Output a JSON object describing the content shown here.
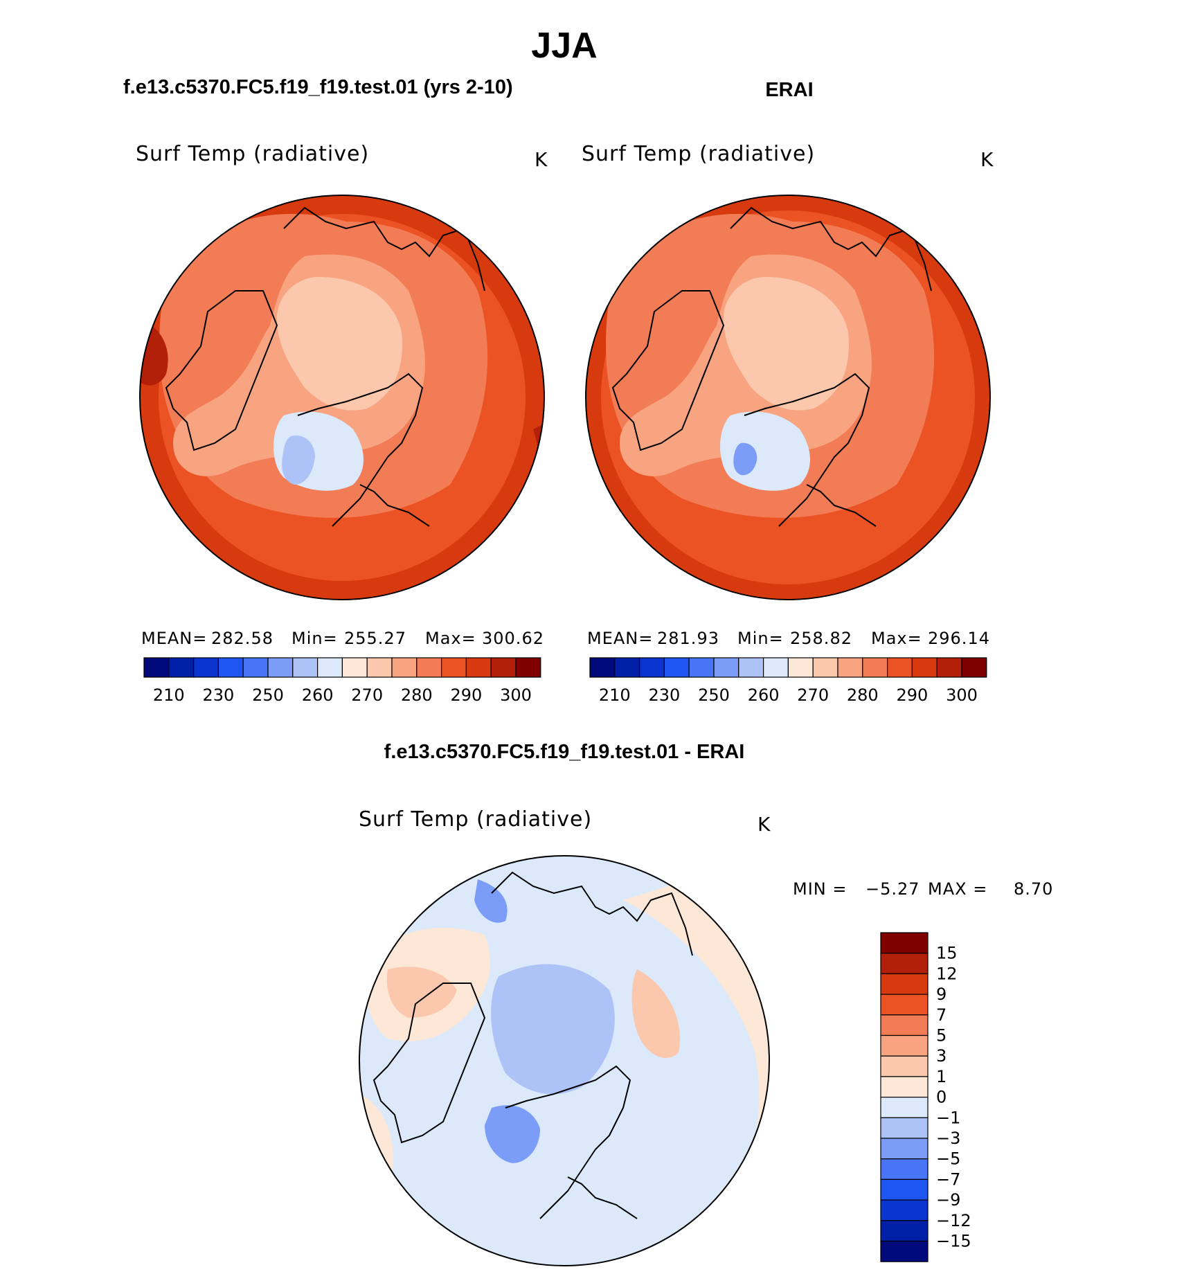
{
  "title": "JJA",
  "panels": {
    "left": {
      "title": "f.e13.c5370.FC5.f19_f19.test.01 (yrs 2-10)",
      "variable": "Surf Temp (radiative)",
      "unit": "K",
      "stats": {
        "mean_label": "MEAN=",
        "mean": "282.58",
        "min_label": "Min=",
        "min": "255.27",
        "max_label": "Max=",
        "max": "300.62"
      }
    },
    "right": {
      "title": "ERAI",
      "variable": "Surf Temp (radiative)",
      "unit": "K",
      "stats": {
        "mean_label": "MEAN=",
        "mean": "281.93",
        "min_label": "Min=",
        "min": "258.82",
        "max_label": "Max=",
        "max": "296.14"
      }
    },
    "diff": {
      "title": "f.e13.c5370.FC5.f19_f19.test.01 - ERAI",
      "variable": "Surf Temp (radiative)",
      "unit": "K",
      "stats": {
        "min_label": "MIN =",
        "min": "−5.27",
        "max_label": "MAX =",
        "max": "8.70"
      }
    }
  },
  "chart_data": [
    {
      "type": "heatmap",
      "projection": "north polar stereographic",
      "title": "f.e13.c5370.FC5.f19_f19.test.01 (yrs 2-10)",
      "variable": "Surf Temp (radiative)",
      "unit": "K",
      "mean": 282.58,
      "min": 255.27,
      "max": 300.62,
      "levels_labels": [
        "210",
        "230",
        "250",
        "260",
        "270",
        "280",
        "290",
        "300"
      ],
      "colors": [
        "#000a7a",
        "#0020a8",
        "#0a35cf",
        "#1f55f0",
        "#4775f5",
        "#7b9cf7",
        "#adc3f7",
        "#dbe9fb",
        "#fde7d7",
        "#fbc8ad",
        "#f8a480",
        "#f27c55",
        "#ec5324",
        "#d83a0f",
        "#b3200a",
        "#800000"
      ]
    },
    {
      "type": "heatmap",
      "projection": "north polar stereographic",
      "title": "ERAI",
      "variable": "Surf Temp (radiative)",
      "unit": "K",
      "mean": 281.93,
      "min": 258.82,
      "max": 296.14,
      "levels_labels": [
        "210",
        "230",
        "250",
        "260",
        "270",
        "280",
        "290",
        "300"
      ],
      "colors": [
        "#000a7a",
        "#0020a8",
        "#0a35cf",
        "#1f55f0",
        "#4775f5",
        "#7b9cf7",
        "#adc3f7",
        "#dbe9fb",
        "#fde7d7",
        "#fbc8ad",
        "#f8a480",
        "#f27c55",
        "#ec5324",
        "#d83a0f",
        "#b3200a",
        "#800000"
      ]
    },
    {
      "type": "heatmap",
      "projection": "north polar stereographic",
      "title": "f.e13.c5370.FC5.f19_f19.test.01 - ERAI",
      "variable": "Surf Temp (radiative)",
      "unit": "K",
      "min": -5.27,
      "max": 8.7,
      "levels_labels": [
        "15",
        "12",
        "9",
        "7",
        "5",
        "3",
        "1",
        "0",
        "−1",
        "−3",
        "−5",
        "−7",
        "−9",
        "−12",
        "−15"
      ],
      "colors": [
        "#800000",
        "#b3200a",
        "#d83a0f",
        "#ec5324",
        "#f27c55",
        "#f8a480",
        "#fbc8ad",
        "#fde7d7",
        "#dbe9fb",
        "#adc3f7",
        "#7b9cf7",
        "#4775f5",
        "#1f55f0",
        "#0a35cf",
        "#0020a8",
        "#000a7a"
      ]
    }
  ]
}
